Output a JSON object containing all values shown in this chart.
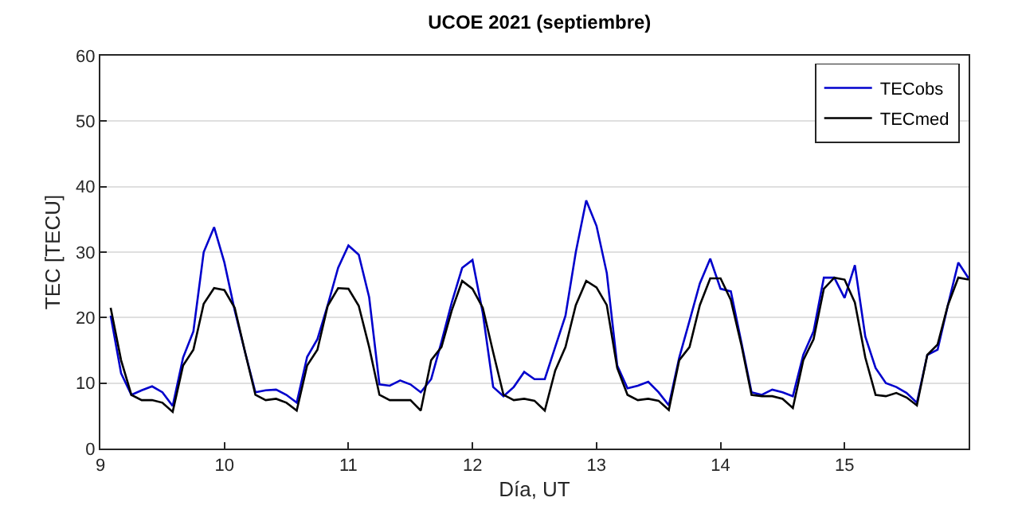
{
  "chart_data": {
    "type": "line",
    "title": "UCOE 2021 (septiembre)",
    "xlabel": "Día, UT",
    "ylabel": "TEC [TECU]",
    "x": [
      9.083,
      9.167,
      9.25,
      9.333,
      9.417,
      9.5,
      9.583,
      9.667,
      9.75,
      9.833,
      9.917,
      10,
      10.083,
      10.167,
      10.25,
      10.333,
      10.417,
      10.5,
      10.583,
      10.667,
      10.75,
      10.833,
      10.917,
      11,
      11.083,
      11.167,
      11.25,
      11.333,
      11.417,
      11.5,
      11.583,
      11.667,
      11.75,
      11.833,
      11.917,
      12,
      12.083,
      12.167,
      12.25,
      12.333,
      12.417,
      12.5,
      12.583,
      12.667,
      12.75,
      12.833,
      12.917,
      13,
      13.083,
      13.167,
      13.25,
      13.333,
      13.417,
      13.5,
      13.583,
      13.667,
      13.75,
      13.833,
      13.917,
      14,
      14.083,
      14.167,
      14.25,
      14.333,
      14.417,
      14.5,
      14.583,
      14.667,
      14.75,
      14.833,
      14.917,
      15,
      15.083,
      15.167,
      15.25,
      15.333,
      15.417,
      15.5,
      15.583,
      15.667,
      15.75,
      15.833,
      15.917,
      16
    ],
    "series": [
      {
        "name": "TECobs",
        "color": "#0000cc",
        "values": [
          20.3,
          11.5,
          8.2,
          8.9,
          9.5,
          8.6,
          6.5,
          13.9,
          17.9,
          30.0,
          33.8,
          28.4,
          21.1,
          14.7,
          8.6,
          8.9,
          9.0,
          8.2,
          7.0,
          14.0,
          16.7,
          21.9,
          27.6,
          31.0,
          29.6,
          23.1,
          9.8,
          9.6,
          10.4,
          9.8,
          8.6,
          10.6,
          16.3,
          22.3,
          27.6,
          28.8,
          20.7,
          9.4,
          8.0,
          9.4,
          11.7,
          10.6,
          10.6,
          15.5,
          20.3,
          30.0,
          37.9,
          34.0,
          26.8,
          12.7,
          9.2,
          9.6,
          10.2,
          8.6,
          6.6,
          13.9,
          19.5,
          25.2,
          29.0,
          24.4,
          24.0,
          16.3,
          8.6,
          8.2,
          9.0,
          8.6,
          8.0,
          14.3,
          17.9,
          26.1,
          26.1,
          23.0,
          28.0,
          17.1,
          12.3,
          10.0,
          9.4,
          8.5,
          7.0,
          14.3,
          15.1,
          21.9,
          28.4,
          26.0
        ]
      },
      {
        "name": "TECmed",
        "color": "#000000",
        "values": [
          21.5,
          13.5,
          8.2,
          7.4,
          7.4,
          7.0,
          5.6,
          12.7,
          15.1,
          22.1,
          24.5,
          24.2,
          21.5,
          14.7,
          8.2,
          7.4,
          7.6,
          7.0,
          5.8,
          12.7,
          15.1,
          21.8,
          24.5,
          24.4,
          21.8,
          15.5,
          8.2,
          7.4,
          7.4,
          7.4,
          5.8,
          13.5,
          15.5,
          21.1,
          25.6,
          24.4,
          21.5,
          14.7,
          8.2,
          7.4,
          7.6,
          7.3,
          5.8,
          11.9,
          15.5,
          21.9,
          25.6,
          24.6,
          21.9,
          12.3,
          8.2,
          7.4,
          7.6,
          7.3,
          5.9,
          13.5,
          15.5,
          21.9,
          26.0,
          26.0,
          22.7,
          15.9,
          8.2,
          8.0,
          8.0,
          7.6,
          6.2,
          13.5,
          16.7,
          24.4,
          26.1,
          25.8,
          22.3,
          13.9,
          8.2,
          8.0,
          8.5,
          7.8,
          6.6,
          14.3,
          15.9,
          21.9,
          26.1,
          25.8
        ]
      }
    ],
    "xlim": [
      9,
      16
    ],
    "xticks": [
      9,
      10,
      11,
      12,
      13,
      14,
      15
    ],
    "ylim": [
      0,
      60
    ],
    "yticks": [
      0,
      10,
      20,
      30,
      40,
      50,
      60
    ],
    "grid": "y",
    "legend": "top right",
    "marker": "none",
    "line_style": "solid"
  }
}
